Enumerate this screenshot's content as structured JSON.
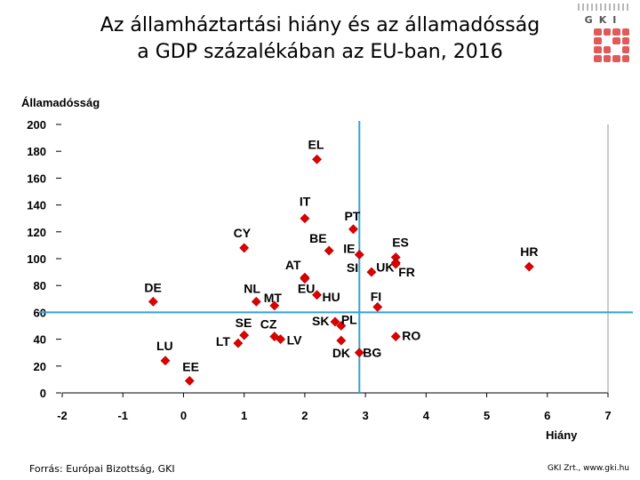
{
  "header": {
    "title_line1": "Az államháztartási hiány és az államadósság",
    "title_line2": "a GDP százalékában az EU-ban, 2016",
    "logo_text": "GKI"
  },
  "footer": {
    "source": "Forrás: Európai Bizottság, GKI",
    "credit": "GKI Zrt., www.gki.hu"
  },
  "colors": {
    "marker": "#dd0000",
    "refline": "#33a3d8",
    "axis": "#000000"
  },
  "chart_data": {
    "type": "scatter",
    "title": "Az államháztartási hiány és az államadósság a GDP százalékában az EU-ban, 2016",
    "xlabel": "Hiány",
    "ylabel": "Államadósság",
    "xlim": [
      -2,
      7
    ],
    "ylim": [
      0,
      200
    ],
    "xticks": [
      -2,
      -1,
      0,
      1,
      2,
      3,
      4,
      5,
      6,
      7
    ],
    "yticks": [
      0,
      20,
      40,
      60,
      80,
      100,
      120,
      140,
      160,
      180,
      200
    ],
    "reference_lines": {
      "x": 2.9,
      "y": 60
    },
    "points": [
      {
        "label": "EL",
        "x": 2.2,
        "y": 174
      },
      {
        "label": "IT",
        "x": 2.0,
        "y": 130
      },
      {
        "label": "PT",
        "x": 2.8,
        "y": 122
      },
      {
        "label": "CY",
        "x": 1.0,
        "y": 108
      },
      {
        "label": "BE",
        "x": 2.4,
        "y": 106
      },
      {
        "label": "IE",
        "x": 2.9,
        "y": 103
      },
      {
        "label": "ES",
        "x": 3.5,
        "y": 101
      },
      {
        "label": "UK",
        "x": 3.5,
        "y": 97
      },
      {
        "label": "HR",
        "x": 5.7,
        "y": 94
      },
      {
        "label": "FR",
        "x": 3.5,
        "y": 96
      },
      {
        "label": "SI",
        "x": 3.1,
        "y": 90
      },
      {
        "label": "AT",
        "x": 2.0,
        "y": 86
      },
      {
        "label": "EU",
        "x": 2.0,
        "y": 85
      },
      {
        "label": "NL",
        "x": 1.2,
        "y": 68
      },
      {
        "label": "MT",
        "x": 1.5,
        "y": 65
      },
      {
        "label": "HU",
        "x": 2.2,
        "y": 73
      },
      {
        "label": "DE",
        "x": -0.5,
        "y": 68
      },
      {
        "label": "FI",
        "x": 3.2,
        "y": 64
      },
      {
        "label": "SK",
        "x": 2.5,
        "y": 53
      },
      {
        "label": "PL",
        "x": 2.6,
        "y": 50
      },
      {
        "label": "SE",
        "x": 1.0,
        "y": 43
      },
      {
        "label": "CZ",
        "x": 1.5,
        "y": 42
      },
      {
        "label": "LV",
        "x": 1.6,
        "y": 40
      },
      {
        "label": "LT",
        "x": 0.9,
        "y": 37
      },
      {
        "label": "RO",
        "x": 3.5,
        "y": 42
      },
      {
        "label": "DK",
        "x": 2.6,
        "y": 39
      },
      {
        "label": "BG",
        "x": 2.9,
        "y": 30
      },
      {
        "label": "LU",
        "x": -0.3,
        "y": 24
      },
      {
        "label": "EE",
        "x": 0.1,
        "y": 9
      }
    ]
  }
}
